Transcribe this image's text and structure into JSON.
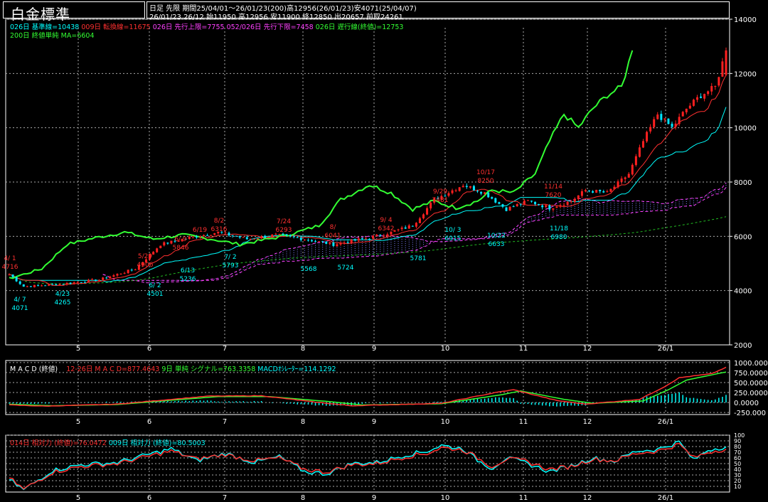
{
  "header": {
    "title": "白金標準",
    "info_line1": "日足  先限  期間25/04/01～26/01/23(200)高12956(26/01/23)安4071(25/04/07)",
    "info_line2": "26/01/23 26/12 始11950 高12956 安11900 終12850 出20657 前取24261"
  },
  "legends": {
    "main": [
      {
        "text": "026日 基準線=10438",
        "color": "#00ffff"
      },
      {
        "text": "009日 転換線=11675",
        "color": "#ff3030"
      },
      {
        "text": "026日 先行上限=7755",
        "color": "#ff40ff"
      },
      {
        "text": "052/026日 先行下限=7458",
        "color": "#ff40ff"
      },
      {
        "text": "026日 遅行線(終値)=12753",
        "color": "#33ff33"
      }
    ],
    "main2": [
      {
        "text": "200日 終値単純 MA=6604",
        "color": "#33ff33"
      }
    ],
    "macd": [
      {
        "text": "M A C D (終値)",
        "color": "#ffffff"
      },
      {
        "text": "12-26日 M A C D=877.4643",
        "color": "#ff3030"
      },
      {
        "text": "9日 単純 シグナル=763.3358",
        "color": "#33ff33"
      },
      {
        "text": "MACDｵｼﾚｰﾀｰ=114.1292",
        "color": "#00ffff"
      }
    ],
    "rsi": [
      {
        "text": "014日 相対力 (終値)=76.0472",
        "color": "#ff3030"
      },
      {
        "text": "009日 相対力 (終値)=80.5003",
        "color": "#00ffff"
      }
    ]
  },
  "chart_data": [
    {
      "type": "candlestick",
      "title": "白金標準",
      "x_tick_labels": [
        "5",
        "6",
        "7",
        "8",
        "9",
        "10",
        "11",
        "12",
        "26/1"
      ],
      "y_tick_labels": [
        "2000",
        "4000",
        "6000",
        "8000",
        "10000",
        "12000",
        "14000"
      ],
      "ylim": [
        2000,
        14000
      ],
      "grid": true,
      "period": [
        "25/04/01",
        "26/01/23"
      ],
      "high": 12956,
      "low": 4071,
      "ohlc_anchor_closes": [
        [
          0,
          4600
        ],
        [
          4,
          4150
        ],
        [
          15,
          4250
        ],
        [
          25,
          4400
        ],
        [
          35,
          4800
        ],
        [
          42,
          5700
        ],
        [
          50,
          5950
        ],
        [
          58,
          6150
        ],
        [
          66,
          5900
        ],
        [
          74,
          6050
        ],
        [
          82,
          5900
        ],
        [
          90,
          5700
        ],
        [
          100,
          5950
        ],
        [
          106,
          6150
        ],
        [
          112,
          6400
        ],
        [
          118,
          7350
        ],
        [
          126,
          7900
        ],
        [
          132,
          7600
        ],
        [
          138,
          7000
        ],
        [
          144,
          7300
        ],
        [
          150,
          7050
        ],
        [
          156,
          7300
        ],
        [
          160,
          7700
        ],
        [
          166,
          7600
        ],
        [
          172,
          8300
        ],
        [
          176,
          9500
        ],
        [
          180,
          10500
        ],
        [
          184,
          10000
        ],
        [
          188,
          10700
        ],
        [
          192,
          11200
        ],
        [
          196,
          11500
        ],
        [
          199,
          12850
        ]
      ],
      "annotations": [
        {
          "text": "4/ 1",
          "color": "#ff3030",
          "value": 4716
        },
        {
          "text": "4716",
          "color": "#ff3030",
          "value": 4716
        },
        {
          "text": "4/ 7",
          "color": "#00ffff",
          "value": 4071
        },
        {
          "text": "4071",
          "color": "#00ffff",
          "value": 4071
        },
        {
          "text": "4/23",
          "color": "#00ffff",
          "value": 4265
        },
        {
          "text": "4265",
          "color": "#00ffff",
          "value": 4265
        },
        {
          "text": "5/29",
          "color": "#ff3030",
          "value": 4906
        },
        {
          "text": "4906",
          "color": "#ff3030",
          "value": 4906
        },
        {
          "text": "6/ 2",
          "color": "#00ffff",
          "value": 4501
        },
        {
          "text": "4501",
          "color": "#00ffff",
          "value": 4501
        },
        {
          "text": "6/13",
          "color": "#00ffff",
          "value": 5236
        },
        {
          "text": "5236",
          "color": "#00ffff",
          "value": 5236
        },
        {
          "text": "6/19",
          "color": "#ff3030",
          "value": 5839
        },
        {
          "text": "6/ 9",
          "color": "#ff3030",
          "value": 5846
        },
        {
          "text": "5846",
          "color": "#ff3030",
          "value": 5846
        },
        {
          "text": "8/2",
          "color": "#ff3030",
          "value": 6316
        },
        {
          "text": "6316",
          "color": "#ff3030",
          "value": 6316
        },
        {
          "text": "7/ 2",
          "color": "#00ffff",
          "value": 5793
        },
        {
          "text": "5793",
          "color": "#00ffff",
          "value": 5793
        },
        {
          "text": "7/24",
          "color": "#ff3030",
          "value": 6293
        },
        {
          "text": "6293",
          "color": "#ff3030",
          "value": 6293
        },
        {
          "text": "5568",
          "color": "#00ffff",
          "value": 5568
        },
        {
          "text": "5724",
          "color": "#00ffff",
          "value": 5724
        },
        {
          "text": "8/",
          "color": "#ff3030",
          "value": 6041
        },
        {
          "text": "6041",
          "color": "#ff3030",
          "value": 6041
        },
        {
          "text": "9/ 4",
          "color": "#ff3030",
          "value": 6342
        },
        {
          "text": "6342",
          "color": "#ff3030",
          "value": 6342
        },
        {
          "text": "5781",
          "color": "#00ffff",
          "value": 5781
        },
        {
          "text": "9/29",
          "color": "#ff3030",
          "value": 7481
        },
        {
          "text": "7481",
          "color": "#ff3030",
          "value": 7481
        },
        {
          "text": "10/ 3",
          "color": "#00ffff",
          "value": 6915
        },
        {
          "text": "6915",
          "color": "#00ffff",
          "value": 6915
        },
        {
          "text": "10/17",
          "color": "#ff3030",
          "value": 8250
        },
        {
          "text": "8250",
          "color": "#ff3030",
          "value": 8250
        },
        {
          "text": "10/22",
          "color": "#00ffff",
          "value": 6633
        },
        {
          "text": "6633",
          "color": "#00ffff",
          "value": 6633
        },
        {
          "text": "11/14",
          "color": "#ff3030",
          "value": 7620
        },
        {
          "text": "7620",
          "color": "#ff3030",
          "value": 7620
        },
        {
          "text": "11/18",
          "color": "#00ffff",
          "value": 6980
        },
        {
          "text": "6980",
          "color": "#00ffff",
          "value": 6980
        }
      ]
    },
    {
      "type": "line",
      "title": "M A C D (終値)",
      "x_tick_labels": [
        "5",
        "6",
        "7",
        "8",
        "9",
        "10",
        "11",
        "12",
        "26/1"
      ],
      "y_tick_labels": [
        "1000.000",
        "750.0000",
        "500.0000",
        "250.0000",
        "0.0000",
        "-250.000"
      ],
      "ylim": [
        -300,
        1050
      ],
      "series": [
        {
          "name": "12-26日 M A C D",
          "color": "#ff3030",
          "anchors": [
            [
              0,
              -60
            ],
            [
              10,
              -90
            ],
            [
              30,
              -40
            ],
            [
              55,
              160
            ],
            [
              70,
              170
            ],
            [
              85,
              10
            ],
            [
              95,
              -80
            ],
            [
              120,
              -20
            ],
            [
              135,
              250
            ],
            [
              140,
              320
            ],
            [
              152,
              50
            ],
            [
              160,
              -40
            ],
            [
              175,
              80
            ],
            [
              182,
              400
            ],
            [
              186,
              620
            ],
            [
              195,
              720
            ],
            [
              199,
              877
            ]
          ]
        },
        {
          "name": "9日 単純 シグナル",
          "color": "#33ff33",
          "anchors": [
            [
              0,
              -40
            ],
            [
              12,
              -80
            ],
            [
              30,
              -50
            ],
            [
              58,
              150
            ],
            [
              72,
              150
            ],
            [
              88,
              30
            ],
            [
              98,
              -60
            ],
            [
              120,
              -30
            ],
            [
              137,
              200
            ],
            [
              142,
              290
            ],
            [
              154,
              80
            ],
            [
              162,
              -20
            ],
            [
              176,
              40
            ],
            [
              183,
              320
            ],
            [
              188,
              560
            ],
            [
              195,
              690
            ],
            [
              199,
              763
            ]
          ]
        }
      ]
    },
    {
      "type": "line",
      "title": "相対力",
      "x_tick_labels": [
        "5",
        "6",
        "7",
        "8",
        "9",
        "10",
        "11",
        "12",
        "26/1"
      ],
      "y_tick_labels": [
        "100",
        "90",
        "80",
        "70",
        "60",
        "50",
        "40",
        "30",
        "20",
        "10"
      ],
      "ylim": [
        0,
        100
      ],
      "series": [
        {
          "name": "014日 相対力 (終値)",
          "color": "#ff3030",
          "anchors": [
            [
              0,
              25
            ],
            [
              4,
              5
            ],
            [
              12,
              35
            ],
            [
              20,
              45
            ],
            [
              30,
              50
            ],
            [
              38,
              62
            ],
            [
              45,
              72
            ],
            [
              52,
              58
            ],
            [
              60,
              66
            ],
            [
              68,
              55
            ],
            [
              75,
              60
            ],
            [
              82,
              40
            ],
            [
              88,
              35
            ],
            [
              95,
              48
            ],
            [
              102,
              50
            ],
            [
              110,
              62
            ],
            [
              116,
              68
            ],
            [
              120,
              78
            ],
            [
              126,
              74
            ],
            [
              130,
              60
            ],
            [
              134,
              45
            ],
            [
              138,
              58
            ],
            [
              143,
              55
            ],
            [
              150,
              40
            ],
            [
              156,
              45
            ],
            [
              162,
              58
            ],
            [
              168,
              55
            ],
            [
              174,
              68
            ],
            [
              180,
              72
            ],
            [
              186,
              84
            ],
            [
              190,
              60
            ],
            [
              194,
              70
            ],
            [
              199,
              76
            ]
          ]
        },
        {
          "name": "009日 相対力 (終値)",
          "color": "#00ffff",
          "anchors": [
            [
              0,
              22
            ],
            [
              4,
              4
            ],
            [
              12,
              38
            ],
            [
              20,
              48
            ],
            [
              30,
              52
            ],
            [
              38,
              65
            ],
            [
              45,
              76
            ],
            [
              52,
              55
            ],
            [
              60,
              68
            ],
            [
              68,
              52
            ],
            [
              75,
              62
            ],
            [
              82,
              36
            ],
            [
              88,
              32
            ],
            [
              95,
              50
            ],
            [
              102,
              52
            ],
            [
              110,
              65
            ],
            [
              116,
              72
            ],
            [
              120,
              82
            ],
            [
              126,
              76
            ],
            [
              130,
              56
            ],
            [
              134,
              42
            ],
            [
              138,
              60
            ],
            [
              143,
              52
            ],
            [
              150,
              36
            ],
            [
              156,
              46
            ],
            [
              162,
              60
            ],
            [
              168,
              54
            ],
            [
              174,
              72
            ],
            [
              180,
              75
            ],
            [
              186,
              88
            ],
            [
              190,
              56
            ],
            [
              194,
              74
            ],
            [
              199,
              80
            ]
          ]
        }
      ]
    }
  ]
}
